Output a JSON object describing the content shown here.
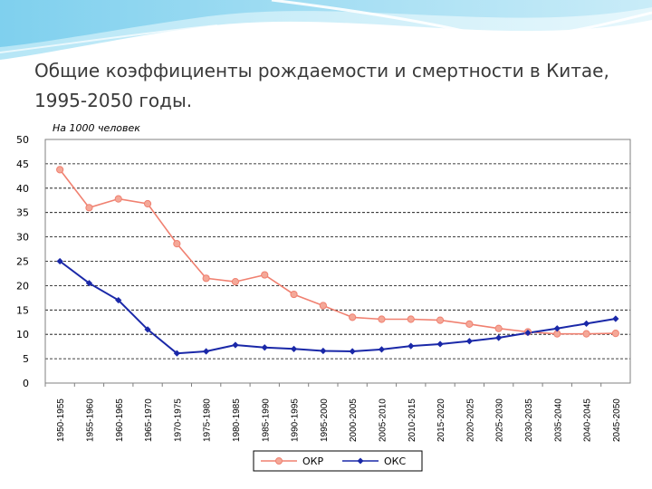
{
  "slide": {
    "title": "Общие коэффициенты рождаемости и смертности в Китае, 1995-2050 годы."
  },
  "chart_data": {
    "type": "line",
    "title": "Общие коэффициенты рождаемости и смертности в Китае, 1995-2050 годы.",
    "unit_label": "На 1000 человек",
    "ylim": [
      0,
      50
    ],
    "yticks": [
      0,
      5,
      10,
      15,
      20,
      25,
      30,
      35,
      40,
      45,
      50
    ],
    "grid": true,
    "legend_position": "bottom",
    "categories": [
      "1950-1955",
      "1955-1960",
      "1960-1965",
      "1965-1970",
      "1970-1975",
      "1975-1980",
      "1980-1985",
      "1985-1990",
      "1990-1995",
      "1995-2000",
      "2000-2005",
      "2005-2010",
      "2010-2015",
      "2015-2020",
      "2020-2025",
      "2025-2030",
      "2030-2035",
      "2035-2040",
      "2040-2045",
      "2045-2050"
    ],
    "series": [
      {
        "name": "ОКР",
        "color": "#f08070",
        "marker_fill": "#f4a898",
        "marker": "circle",
        "values": [
          43.8,
          36.0,
          37.8,
          36.8,
          28.6,
          21.5,
          20.8,
          22.2,
          18.2,
          15.9,
          13.5,
          13.1,
          13.1,
          12.9,
          12.1,
          11.2,
          10.5,
          10.1,
          10.1,
          10.2
        ]
      },
      {
        "name": "ОКС",
        "color": "#1a28a8",
        "marker_fill": "#1a28a8",
        "marker": "diamond",
        "values": [
          25.0,
          20.5,
          17.0,
          11.0,
          6.1,
          6.5,
          7.8,
          7.3,
          7.0,
          6.6,
          6.5,
          6.9,
          7.6,
          8.0,
          8.6,
          9.3,
          10.3,
          11.2,
          12.2,
          13.2
        ]
      }
    ]
  }
}
